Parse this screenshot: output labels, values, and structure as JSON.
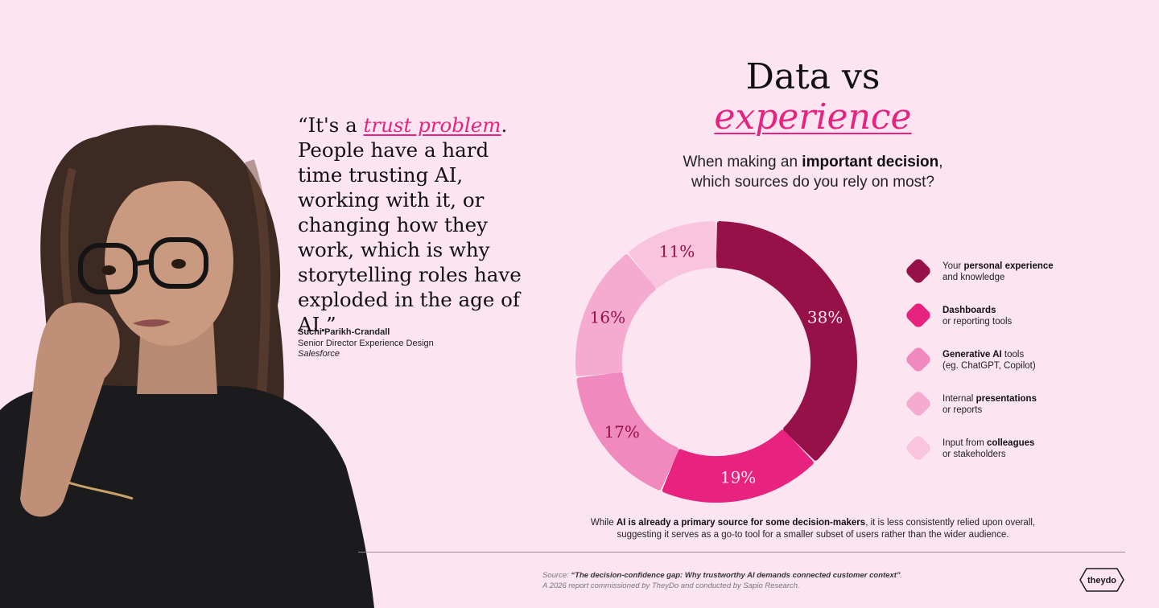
{
  "quote": {
    "open": "“It's a ",
    "emphasis": "trust problem",
    "rest": ". People have a hard time trusting AI, working with it, or changing how they work, which is why storytelling roles have exploded in the age of AI.”"
  },
  "attribution": {
    "name": "Suchi Parikh-Crandall",
    "role": "Senior Director Experience Design",
    "company": "Salesforce"
  },
  "title": {
    "line1": "Data vs",
    "line2": "experience"
  },
  "question": {
    "pre": "When making an ",
    "bold": "important decision",
    "post": ",",
    "line2": "which sources do you rely on most?"
  },
  "chart_data": {
    "type": "pie",
    "donut": true,
    "values": [
      38,
      19,
      17,
      16,
      11
    ],
    "value_labels": [
      "38%",
      "19%",
      "17%",
      "16%",
      "11%"
    ],
    "colors": [
      "#951148",
      "#e8237f",
      "#f089bd",
      "#f5aad0",
      "#f8c4de"
    ],
    "label_colors": [
      "#fce4f0",
      "#fce4f0",
      "#951148",
      "#951148",
      "#951148"
    ],
    "legend": [
      {
        "pre": "Your ",
        "bold": "personal experience",
        "post": "",
        "line2": "and knowledge"
      },
      {
        "pre": "",
        "bold": "Dashboards",
        "post": "",
        "line2": "or reporting tools"
      },
      {
        "pre": "",
        "bold": "Generative AI",
        "post": " tools",
        "line2": "(eg. ChatGPT, Copilot)"
      },
      {
        "pre": "Internal ",
        "bold": "presentations",
        "post": "",
        "line2": "or reports"
      },
      {
        "pre": "Input from ",
        "bold": "colleagues",
        "post": "",
        "line2": "or stakeholders"
      }
    ],
    "legend_placement": "right"
  },
  "insight": {
    "pre": "While ",
    "bold": "AI is already a primary source for some decision-makers",
    "post": ", it is less consistently relied upon overall, suggesting it serves as a go-to tool for a smaller subset of users rather than the wider audience."
  },
  "source": {
    "pre": "Source: ",
    "bold": "“The decision-confidence gap: Why trustworthy AI demands connected customer context”",
    "post": ".",
    "line2": "A 2026 report commissioned by TheyDo and conducted by Sapio Research."
  },
  "logo": {
    "text": "theydo"
  }
}
